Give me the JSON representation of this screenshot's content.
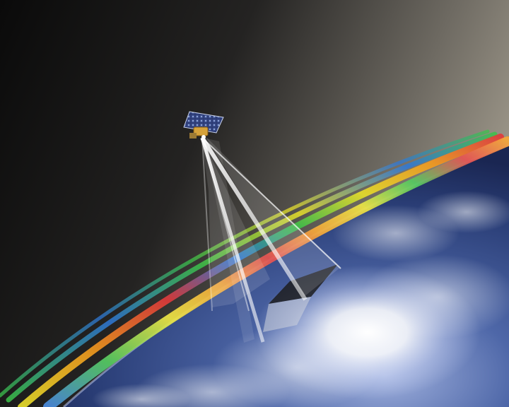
{
  "scene": {
    "subject": "satellite-over-earth-with-colored-swaths",
    "colors": {
      "space_dark": "#0b0b0b",
      "space_light": "#8a8478",
      "earth_blue": "#2f4a86",
      "earth_light": "#6b7fb8",
      "cloud": "#ffffff",
      "swath_hot": "#e23a3a",
      "swath_warm": "#f39a1e",
      "swath_mid": "#e9e02a",
      "swath_cool": "#3cc24a",
      "swath_cold": "#2f78d8",
      "beam": "#ffffff",
      "panel": "#1d2a5a"
    }
  }
}
